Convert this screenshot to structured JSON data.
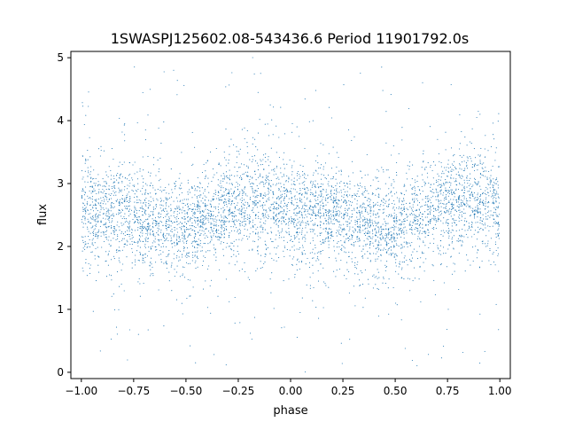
{
  "chart_data": {
    "type": "scatter",
    "title": "1SWASPJ125602.08-543436.6 Period 11901792.0s",
    "xlabel": "phase",
    "ylabel": "flux",
    "xlim": [
      -1.05,
      1.05
    ],
    "ylim": [
      -0.1,
      5.1
    ],
    "x_ticks": [
      -1.0,
      -0.75,
      -0.5,
      -0.25,
      0.0,
      0.25,
      0.5,
      0.75,
      1.0
    ],
    "x_tick_labels": [
      "−1.00",
      "−0.75",
      "−0.50",
      "−0.25",
      "0.00",
      "0.25",
      "0.50",
      "0.75",
      "1.00"
    ],
    "y_ticks": [
      0,
      1,
      2,
      3,
      4,
      5
    ],
    "y_tick_labels": [
      "0",
      "1",
      "2",
      "3",
      "4",
      "5"
    ],
    "grid": false,
    "legend": "none",
    "marker_color": "#1f77b4",
    "series": [
      {
        "phase_range": [
          -1.0,
          1.0
        ],
        "flux_profile": {
          "phase": [
            -1.0,
            -0.9,
            -0.8,
            -0.7,
            -0.6,
            -0.5,
            -0.4,
            -0.3,
            -0.2,
            -0.1,
            0.0,
            0.1,
            0.2,
            0.3,
            0.4,
            0.5,
            0.6,
            0.7,
            0.8,
            0.9,
            1.0
          ],
          "median": [
            2.6,
            2.5,
            2.55,
            2.4,
            2.35,
            2.3,
            2.45,
            2.6,
            2.75,
            2.7,
            2.6,
            2.5,
            2.55,
            2.4,
            2.35,
            2.3,
            2.45,
            2.6,
            2.75,
            2.7,
            2.6
          ],
          "core_spread": [
            0.4,
            0.4,
            0.4,
            0.38,
            0.38,
            0.36,
            0.38,
            0.4,
            0.42,
            0.42,
            0.4,
            0.4,
            0.4,
            0.38,
            0.38,
            0.36,
            0.38,
            0.4,
            0.42,
            0.42,
            0.4
          ]
        },
        "outlier_range": [
          0.1,
          4.9
        ]
      }
    ]
  }
}
